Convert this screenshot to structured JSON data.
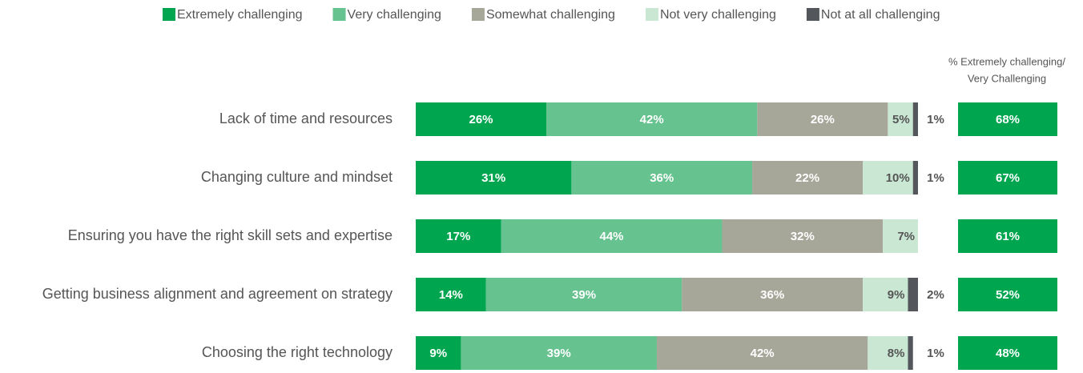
{
  "chart_data": {
    "type": "stacked-bar-horizontal",
    "categories": [
      "Lack of time and resources",
      "Changing culture and mindset",
      "Ensuring you have the right skill sets and expertise",
      "Getting business alignment and agreement on strategy",
      "Choosing the right technology"
    ],
    "xlim": [
      0,
      100
    ],
    "legend": "top",
    "series": [
      {
        "name": "Extremely challenging",
        "color": "#00a64f",
        "values": [
          26,
          31,
          17,
          14,
          9
        ],
        "value_labels": [
          "26%",
          "31%",
          "17%",
          "14%",
          "9%"
        ]
      },
      {
        "name": "Very challenging",
        "color": "#66c28e",
        "values": [
          42,
          36,
          44,
          39,
          39
        ],
        "value_labels": [
          "42%",
          "36%",
          "44%",
          "39%",
          "39%"
        ]
      },
      {
        "name": "Somewhat challenging",
        "color": "#a6a699",
        "values": [
          26,
          22,
          32,
          36,
          42
        ],
        "value_labels": [
          "26%",
          "22%",
          "32%",
          "36%",
          "42%"
        ]
      },
      {
        "name": "Not very challenging",
        "color": "#c9e7d3",
        "values": [
          5,
          10,
          7,
          9,
          8
        ],
        "value_labels": [
          "5%",
          "10%",
          "7%",
          "9%",
          "8%"
        ]
      },
      {
        "name": "Not at all challenging",
        "color": "#53575c",
        "values": [
          1,
          1,
          null,
          2,
          1
        ],
        "value_labels": [
          "1%",
          "1%",
          null,
          "2%",
          "1%"
        ]
      }
    ],
    "totals": {
      "title": "% Extremely challenging/ Very Challenging",
      "color": "#00a64f",
      "values": [
        68,
        67,
        61,
        52,
        48
      ],
      "value_labels": [
        "68%",
        "67%",
        "61%",
        "52%",
        "48%"
      ]
    }
  }
}
